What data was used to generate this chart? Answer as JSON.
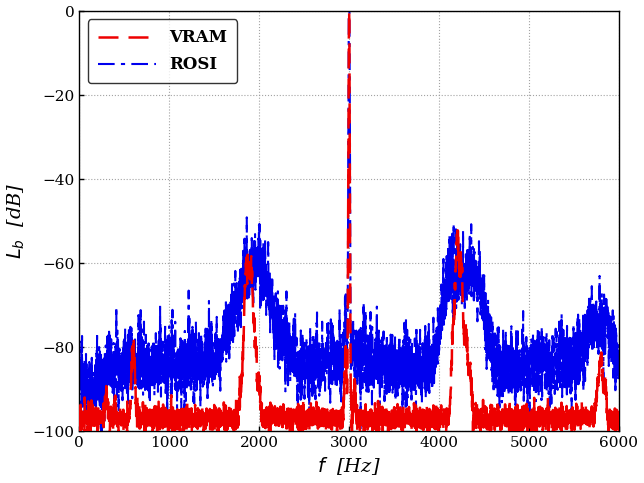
{
  "xlabel": "$f$  [Hz]",
  "ylabel": "$L_b$  [dB]",
  "xlim": [
    0,
    6000
  ],
  "ylim": [
    -100,
    0
  ],
  "yticks": [
    0,
    -20,
    -40,
    -60,
    -80,
    -100
  ],
  "xticks": [
    0,
    1000,
    2000,
    3000,
    4000,
    5000,
    6000
  ],
  "vram_color": "#EE0000",
  "rosi_color": "#0000EE",
  "background_color": "#FFFFFF",
  "grid_color": "#999999",
  "figsize": [
    6.44,
    4.83
  ],
  "dpi": 100,
  "legend_labels": [
    "VRAM",
    "ROSI"
  ]
}
